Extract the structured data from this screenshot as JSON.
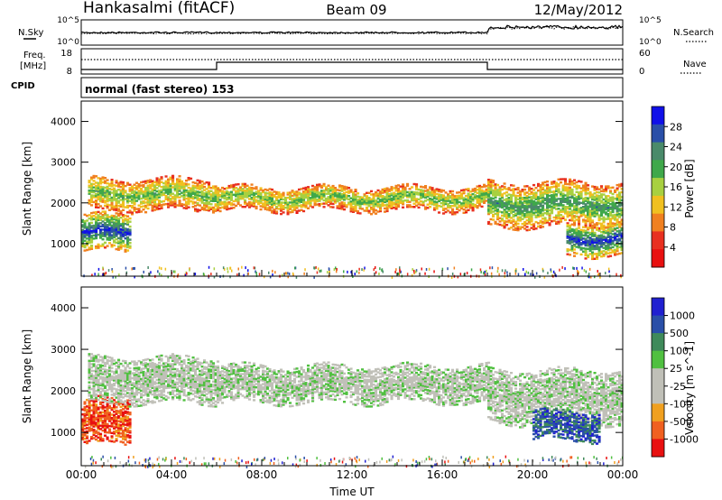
{
  "header": {
    "station": "Hankasalmi (fitACF)",
    "beam": "Beam 09",
    "date": "12/May/2012"
  },
  "noise_panel": {
    "left_label": "N.Sky",
    "right_label": "N.Search",
    "left_ticks": [
      "10^5",
      "10^0"
    ],
    "right_ticks": [
      "10^5",
      "10^0"
    ]
  },
  "freq_panel": {
    "left_label_1": "Freq.",
    "left_label_2": "[MHz]",
    "left_ticks": [
      "18",
      "8"
    ],
    "right_ticks": [
      "60",
      "0"
    ],
    "right_label": "Nave",
    "cpid_label": "CPID",
    "cpid_text": "normal (fast stereo) 153"
  },
  "colors": {
    "power_scale": [
      "#1010e8",
      "#2a4fa8",
      "#4a8a6a",
      "#3fa84a",
      "#a8d040",
      "#f0c020",
      "#f08020",
      "#e83020",
      "#e81010"
    ],
    "velocity_scale": [
      "#2020d0",
      "#2a4fa8",
      "#3f8a5a",
      "#50c040",
      "#c0c0b8",
      "#c0c0b8",
      "#f0a020",
      "#f06020",
      "#e81010"
    ]
  },
  "chart_data": [
    {
      "type": "heatmap",
      "name": "power",
      "xlabel": "Time UT",
      "ylabel": "Slant Range [km]",
      "xlim": [
        0,
        24
      ],
      "ylim": [
        200,
        4500
      ],
      "x_ticks": [
        "00:00",
        "04:00",
        "08:00",
        "12:00",
        "16:00",
        "20:00",
        "00:00"
      ],
      "y_ticks": [
        1000,
        2000,
        3000,
        4000
      ],
      "colorbar_label": "Power [dB]",
      "colorbar_ticks": [
        28,
        24,
        20,
        16,
        12,
        8,
        4
      ],
      "bands": [
        {
          "t0": 0.0,
          "t1": 2.2,
          "r_low": 800,
          "r_high": 1700,
          "level": 0.9
        },
        {
          "t0": 0.3,
          "t1": 6.0,
          "r_low": 1800,
          "r_high": 2600,
          "level": 0.6
        },
        {
          "t0": 6.0,
          "t1": 18.0,
          "r_low": 1800,
          "r_high": 2400,
          "level": 0.6
        },
        {
          "t0": 18.0,
          "t1": 24.0,
          "r_low": 1400,
          "r_high": 2500,
          "level": 0.7
        },
        {
          "t0": 21.5,
          "t1": 24.0,
          "r_low": 700,
          "r_high": 1500,
          "level": 0.9
        }
      ]
    },
    {
      "type": "heatmap",
      "name": "velocity",
      "xlabel": "Time UT",
      "ylabel": "Slant Range [km]",
      "xlim": [
        0,
        24
      ],
      "ylim": [
        200,
        4500
      ],
      "x_ticks": [
        "00:00",
        "04:00",
        "08:00",
        "12:00",
        "16:00",
        "20:00",
        "00:00"
      ],
      "y_ticks": [
        1000,
        2000,
        3000,
        4000
      ],
      "colorbar_label": "Velocity [m s^-1]",
      "colorbar_ticks": [
        1000,
        500,
        100,
        25,
        -25,
        -100,
        -500,
        -1000
      ],
      "bands": [
        {
          "t0": 0.0,
          "t1": 2.2,
          "r_low": 700,
          "r_high": 1800,
          "level": 0.15
        },
        {
          "t0": 0.3,
          "t1": 6.0,
          "r_low": 1700,
          "r_high": 2800,
          "level": 0.5
        },
        {
          "t0": 6.0,
          "t1": 18.0,
          "r_low": 1700,
          "r_high": 2600,
          "level": 0.5
        },
        {
          "t0": 18.0,
          "t1": 24.0,
          "r_low": 1200,
          "r_high": 2500,
          "level": 0.5
        },
        {
          "t0": 20.0,
          "t1": 23.0,
          "r_low": 800,
          "r_high": 1500,
          "level": 0.82
        }
      ]
    }
  ]
}
